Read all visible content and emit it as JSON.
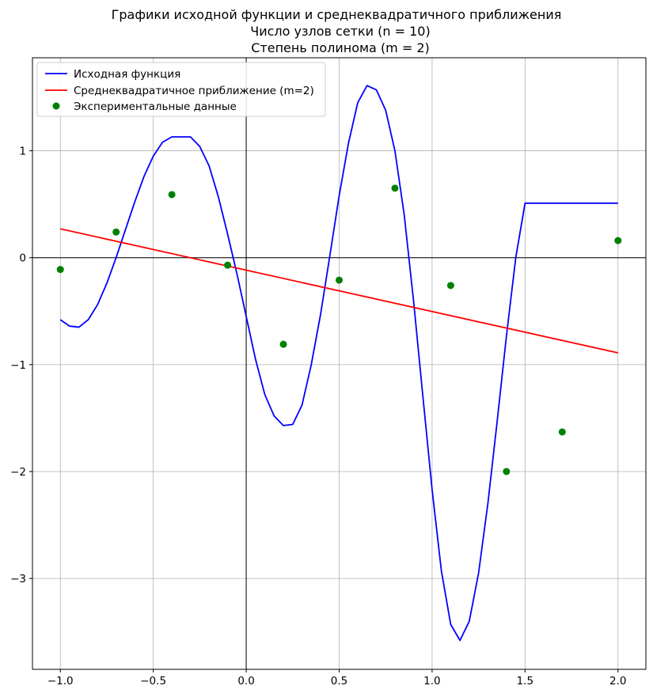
{
  "chart_data": {
    "type": "line",
    "title_lines": [
      "Графики исходной функции и среднеквадратичного приближения",
      "Число узлов сетки (n = 10)",
      "Степень полинома (m = 2)"
    ],
    "xlabel": "",
    "ylabel": "",
    "xlim": [
      -1.15,
      2.15
    ],
    "ylim": [
      -3.85,
      1.87
    ],
    "xticks": [
      -1.0,
      -0.5,
      0.0,
      0.5,
      1.0,
      1.5,
      2.0
    ],
    "xtick_labels": [
      "−1.0",
      "−0.5",
      "0.0",
      "0.5",
      "1.0",
      "1.5",
      "2.0"
    ],
    "yticks": [
      1,
      0,
      -1,
      -2,
      -3
    ],
    "ytick_labels": [
      "1",
      "0",
      "−1",
      "−2",
      "−3"
    ],
    "grid": true,
    "zero_axes": true,
    "legend_position": "top-left",
    "series": [
      {
        "name": "Исходная функция",
        "kind": "line",
        "color": "#0000ff",
        "x": [
          -1.0,
          -0.95,
          -0.9,
          -0.85,
          -0.8,
          -0.75,
          -0.7,
          -0.65,
          -0.6,
          -0.55,
          -0.5,
          -0.45,
          -0.4,
          -0.35,
          -0.3,
          -0.25,
          -0.2,
          -0.15,
          -0.1,
          -0.05,
          0.0,
          0.05,
          0.1,
          0.15,
          0.2,
          0.25,
          0.3,
          0.35,
          0.4,
          0.45,
          0.5,
          0.55,
          0.6,
          0.65,
          0.7,
          0.75,
          0.8,
          0.85,
          0.9,
          0.95,
          1.0,
          1.05,
          1.1,
          1.15,
          1.2,
          1.25,
          1.3,
          1.35,
          1.4,
          1.45,
          1.5,
          1.55,
          1.6,
          1.65,
          1.7,
          1.75,
          1.8,
          1.85,
          1.9,
          1.95,
          2.0
        ],
        "y": [
          -0.58,
          -0.64,
          -0.65,
          -0.58,
          -0.44,
          -0.24,
          0.0,
          0.26,
          0.52,
          0.76,
          0.95,
          1.08,
          1.13,
          1.13,
          1.13,
          1.04,
          0.86,
          0.57,
          0.22,
          -0.15,
          -0.55,
          -0.95,
          -1.28,
          -1.48,
          -1.57,
          -1.56,
          -1.38,
          -1.0,
          -0.53,
          0.02,
          0.58,
          1.07,
          1.45,
          1.61,
          1.57,
          1.38,
          1.0,
          0.4,
          -0.4,
          -1.29,
          -2.17,
          -2.93,
          -3.43,
          -3.58,
          -3.4,
          -2.95,
          -2.3,
          -1.53,
          -0.73,
          0.0,
          0.51,
          0.51,
          0.51,
          0.51,
          0.51,
          0.51,
          0.51,
          0.51,
          0.51,
          0.51,
          0.51
        ]
      },
      {
        "name": "Среднеквадратичное приближение (m=2)",
        "kind": "line",
        "color": "#ff0000",
        "x": [
          -1.0,
          2.0
        ],
        "y": [
          0.27,
          -0.89
        ]
      },
      {
        "name": "Экспериментальные данные",
        "kind": "scatter",
        "color": "#008000",
        "x": [
          -1.0,
          -0.7,
          -0.4,
          -0.1,
          0.2,
          0.5,
          0.8,
          1.1,
          1.4,
          1.7,
          2.0
        ],
        "y": [
          -0.11,
          0.24,
          0.59,
          -0.07,
          -0.81,
          -0.21,
          0.65,
          -0.26,
          -2.0,
          -1.63,
          0.16
        ]
      }
    ]
  }
}
